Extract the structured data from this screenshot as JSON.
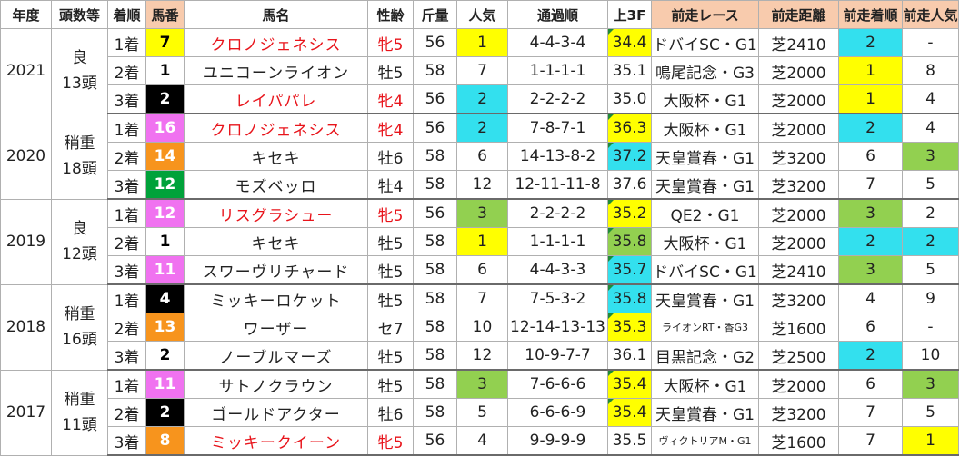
{
  "headers": [
    "年度",
    "頭数等",
    "着順",
    "馬番",
    "馬名",
    "性齢",
    "斤量",
    "人気",
    "通過順",
    "上3F",
    "前走レース",
    "前走距離",
    "前走着順",
    "前走人気"
  ],
  "years": [
    {
      "year": "2021",
      "track": "良",
      "heads": "13頭",
      "rows": [
        {
          "rank": "1着",
          "num": "7",
          "num_color": "yellow",
          "name": "クロノジェネシス",
          "red": true,
          "sex": "牝5",
          "kin": "56",
          "pop": "1",
          "pop_bg": "yellow",
          "passing": "4-4-3-4",
          "f3": "34.4",
          "f3_bg": "yellow",
          "f3_mark": true,
          "prev_race": "ドバイSC・G1",
          "prev_race_small": false,
          "prev_dist": "芝2410",
          "prev_rank": "2",
          "prev_rank_bg": "cyan",
          "prev_pop": "-",
          "prev_pop_bg": ""
        },
        {
          "rank": "2着",
          "num": "1",
          "num_color": "white",
          "name": "ユニコーンライオン",
          "red": false,
          "sex": "牡5",
          "kin": "58",
          "pop": "7",
          "pop_bg": "",
          "passing": "1-1-1-1",
          "f3": "35.1",
          "f3_bg": "",
          "f3_mark": false,
          "prev_race": "鳴尾記念・G3",
          "prev_race_small": false,
          "prev_dist": "芝2000",
          "prev_rank": "1",
          "prev_rank_bg": "yellow",
          "prev_pop": "8",
          "prev_pop_bg": ""
        },
        {
          "rank": "3着",
          "num": "2",
          "num_color": "black",
          "name": "レイパパレ",
          "red": true,
          "sex": "牝4",
          "kin": "56",
          "pop": "2",
          "pop_bg": "cyan",
          "passing": "2-2-2-2",
          "f3": "35.0",
          "f3_bg": "",
          "f3_mark": false,
          "prev_race": "大阪杯・G1",
          "prev_race_small": false,
          "prev_dist": "芝2000",
          "prev_rank": "1",
          "prev_rank_bg": "yellow",
          "prev_pop": "4",
          "prev_pop_bg": ""
        }
      ]
    },
    {
      "year": "2020",
      "track": "稍重",
      "heads": "18頭",
      "rows": [
        {
          "rank": "1着",
          "num": "16",
          "num_color": "pink",
          "name": "クロノジェネシス",
          "red": true,
          "sex": "牝4",
          "kin": "56",
          "pop": "2",
          "pop_bg": "cyan",
          "passing": "7-8-7-1",
          "f3": "36.3",
          "f3_bg": "yellow",
          "f3_mark": true,
          "prev_race": "大阪杯・G1",
          "prev_race_small": false,
          "prev_dist": "芝2000",
          "prev_rank": "2",
          "prev_rank_bg": "cyan",
          "prev_pop": "4",
          "prev_pop_bg": ""
        },
        {
          "rank": "2着",
          "num": "14",
          "num_color": "orange",
          "name": "キセキ",
          "red": false,
          "sex": "牡6",
          "kin": "58",
          "pop": "6",
          "pop_bg": "",
          "passing": "14-13-8-2",
          "f3": "37.2",
          "f3_bg": "cyan",
          "f3_mark": true,
          "prev_race": "天皇賞春・G1",
          "prev_race_small": false,
          "prev_dist": "芝3200",
          "prev_rank": "6",
          "prev_rank_bg": "",
          "prev_pop": "3",
          "prev_pop_bg": "green"
        },
        {
          "rank": "3着",
          "num": "12",
          "num_color": "green",
          "name": "モズベッロ",
          "red": false,
          "sex": "牡4",
          "kin": "58",
          "pop": "12",
          "pop_bg": "",
          "passing": "12-11-11-8",
          "f3": "37.6",
          "f3_bg": "",
          "f3_mark": false,
          "prev_race": "天皇賞春・G1",
          "prev_race_small": false,
          "prev_dist": "芝3200",
          "prev_rank": "7",
          "prev_rank_bg": "",
          "prev_pop": "5",
          "prev_pop_bg": ""
        }
      ]
    },
    {
      "year": "2019",
      "track": "良",
      "heads": "12頭",
      "rows": [
        {
          "rank": "1着",
          "num": "12",
          "num_color": "pink",
          "name": "リスグラシュー",
          "red": true,
          "sex": "牝5",
          "kin": "56",
          "pop": "3",
          "pop_bg": "green",
          "passing": "2-2-2-2",
          "f3": "35.2",
          "f3_bg": "yellow",
          "f3_mark": true,
          "prev_race": "QE2・G1",
          "prev_race_small": false,
          "prev_dist": "芝2000",
          "prev_rank": "3",
          "prev_rank_bg": "green",
          "prev_pop": "2",
          "prev_pop_bg": ""
        },
        {
          "rank": "2着",
          "num": "1",
          "num_color": "white",
          "name": "キセキ",
          "red": false,
          "sex": "牡5",
          "kin": "58",
          "pop": "1",
          "pop_bg": "yellow",
          "passing": "1-1-1-1",
          "f3": "35.8",
          "f3_bg": "green",
          "f3_mark": true,
          "prev_race": "大阪杯・G1",
          "prev_race_small": false,
          "prev_dist": "芝2000",
          "prev_rank": "2",
          "prev_rank_bg": "cyan",
          "prev_pop": "2",
          "prev_pop_bg": "cyan"
        },
        {
          "rank": "3着",
          "num": "11",
          "num_color": "pink",
          "name": "スワーヴリチャード",
          "red": false,
          "sex": "牡5",
          "kin": "58",
          "pop": "6",
          "pop_bg": "",
          "passing": "4-4-3-3",
          "f3": "35.7",
          "f3_bg": "cyan",
          "f3_mark": true,
          "prev_race": "ドバイSC・G1",
          "prev_race_small": false,
          "prev_dist": "芝2410",
          "prev_rank": "3",
          "prev_rank_bg": "green",
          "prev_pop": "5",
          "prev_pop_bg": ""
        }
      ]
    },
    {
      "year": "2018",
      "track": "稍重",
      "heads": "16頭",
      "rows": [
        {
          "rank": "1着",
          "num": "4",
          "num_color": "black",
          "name": "ミッキーロケット",
          "red": false,
          "sex": "牡5",
          "kin": "58",
          "pop": "7",
          "pop_bg": "",
          "passing": "7-5-3-2",
          "f3": "35.8",
          "f3_bg": "cyan",
          "f3_mark": true,
          "prev_race": "天皇賞春・G1",
          "prev_race_small": false,
          "prev_dist": "芝3200",
          "prev_rank": "4",
          "prev_rank_bg": "",
          "prev_pop": "9",
          "prev_pop_bg": ""
        },
        {
          "rank": "2着",
          "num": "13",
          "num_color": "orange",
          "name": "ワーザー",
          "red": false,
          "sex": "セ7",
          "kin": "58",
          "pop": "10",
          "pop_bg": "",
          "passing": "12-14-13-13",
          "f3": "35.3",
          "f3_bg": "yellow",
          "f3_mark": true,
          "prev_race": "ライオンRT・香G3",
          "prev_race_small": true,
          "prev_dist": "芝1600",
          "prev_rank": "6",
          "prev_rank_bg": "",
          "prev_pop": "-",
          "prev_pop_bg": ""
        },
        {
          "rank": "3着",
          "num": "2",
          "num_color": "white",
          "name": "ノーブルマーズ",
          "red": false,
          "sex": "牡5",
          "kin": "58",
          "pop": "12",
          "pop_bg": "",
          "passing": "10-9-7-7",
          "f3": "36.1",
          "f3_bg": "",
          "f3_mark": false,
          "prev_race": "目黒記念・G2",
          "prev_race_small": false,
          "prev_dist": "芝2500",
          "prev_rank": "2",
          "prev_rank_bg": "cyan",
          "prev_pop": "10",
          "prev_pop_bg": ""
        }
      ]
    },
    {
      "year": "2017",
      "track": "稍重",
      "heads": "11頭",
      "rows": [
        {
          "rank": "1着",
          "num": "11",
          "num_color": "pink",
          "name": "サトノクラウン",
          "red": false,
          "sex": "牡5",
          "kin": "58",
          "pop": "3",
          "pop_bg": "green",
          "passing": "7-6-6-6",
          "f3": "35.4",
          "f3_bg": "yellow",
          "f3_mark": true,
          "prev_race": "大阪杯・G1",
          "prev_race_small": false,
          "prev_dist": "芝2000",
          "prev_rank": "6",
          "prev_rank_bg": "",
          "prev_pop": "3",
          "prev_pop_bg": "green"
        },
        {
          "rank": "2着",
          "num": "2",
          "num_color": "black",
          "name": "ゴールドアクター",
          "red": false,
          "sex": "牡6",
          "kin": "58",
          "pop": "5",
          "pop_bg": "",
          "passing": "6-6-6-9",
          "f3": "35.4",
          "f3_bg": "yellow",
          "f3_mark": true,
          "prev_race": "天皇賞春・G1",
          "prev_race_small": false,
          "prev_dist": "芝3200",
          "prev_rank": "7",
          "prev_rank_bg": "",
          "prev_pop": "5",
          "prev_pop_bg": ""
        },
        {
          "rank": "3着",
          "num": "8",
          "num_color": "orange",
          "name": "ミッキークイーン",
          "red": true,
          "sex": "牝5",
          "kin": "56",
          "pop": "4",
          "pop_bg": "",
          "passing": "9-9-9-9",
          "f3": "35.5",
          "f3_bg": "",
          "f3_mark": false,
          "prev_race": "ヴィクトリアM・G1",
          "prev_race_small": true,
          "prev_dist": "芝1600",
          "prev_rank": "7",
          "prev_rank_bg": "",
          "prev_pop": "1",
          "prev_pop_bg": "yellow"
        }
      ]
    }
  ]
}
